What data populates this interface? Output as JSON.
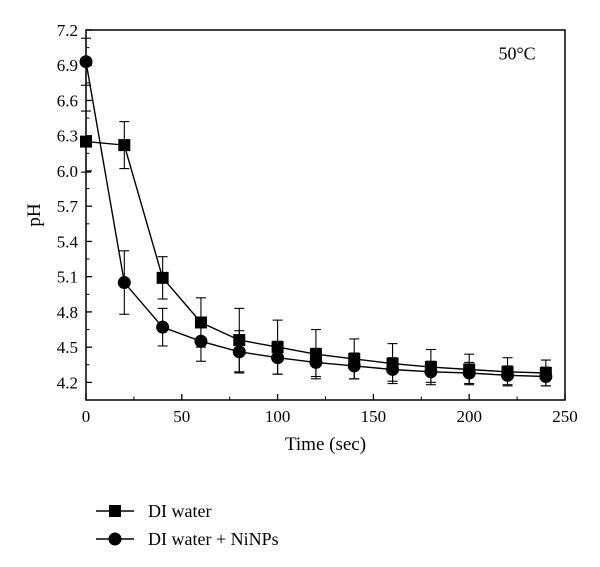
{
  "chart_data": {
    "type": "line",
    "title": "",
    "annotation": "50°C",
    "xlabel": "Time (sec)",
    "ylabel": "pH",
    "xlim": [
      0,
      250
    ],
    "ylim": [
      4.05,
      7.2
    ],
    "xticks": [
      0,
      50,
      100,
      150,
      200,
      250
    ],
    "yticks": [
      4.2,
      4.5,
      4.8,
      5.1,
      5.4,
      5.7,
      6.0,
      6.3,
      6.6,
      6.9,
      7.2
    ],
    "ytick_labels": [
      "4.2",
      "4.5",
      "4.8",
      "5.1",
      "5.4",
      "5.7",
      "6.0",
      "6.3",
      "6.6",
      "6.9",
      "7.2"
    ],
    "grid": false,
    "legend_position": "bottom-left-outside",
    "x": [
      0,
      20,
      40,
      60,
      80,
      100,
      120,
      140,
      160,
      180,
      200,
      220,
      240
    ],
    "series": [
      {
        "name": "DI water",
        "marker": "square",
        "values": [
          6.25,
          6.22,
          5.09,
          4.71,
          4.56,
          4.5,
          4.44,
          4.4,
          4.36,
          4.33,
          4.31,
          4.29,
          4.28
        ],
        "errors": [
          0.26,
          0.2,
          0.18,
          0.21,
          0.27,
          0.23,
          0.21,
          0.17,
          0.17,
          0.15,
          0.13,
          0.12,
          0.11
        ]
      },
      {
        "name": "DI water + NiNPs",
        "marker": "circle",
        "values": [
          6.93,
          5.05,
          4.67,
          4.55,
          4.46,
          4.41,
          4.37,
          4.34,
          4.31,
          4.29,
          4.28,
          4.26,
          4.25
        ],
        "errors": [
          0.2,
          0.27,
          0.16,
          0.17,
          0.18,
          0.14,
          0.12,
          0.11,
          0.1,
          0.09,
          0.09,
          0.08,
          0.08
        ]
      }
    ]
  }
}
